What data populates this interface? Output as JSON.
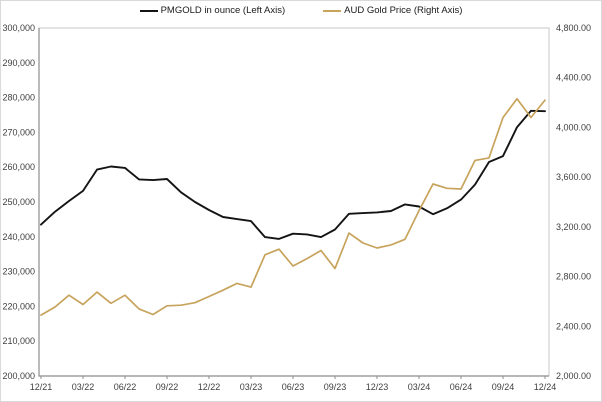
{
  "chart_data": {
    "type": "line",
    "title": "",
    "legend_position": "top",
    "grid": false,
    "months": [
      "12/21",
      "01/22",
      "02/22",
      "03/22",
      "04/22",
      "05/22",
      "06/22",
      "07/22",
      "08/22",
      "09/22",
      "10/22",
      "11/22",
      "12/22",
      "01/23",
      "02/23",
      "03/23",
      "04/23",
      "05/23",
      "06/23",
      "07/23",
      "08/23",
      "09/23",
      "10/23",
      "11/23",
      "12/23",
      "01/24",
      "02/24",
      "03/24",
      "04/24",
      "05/24",
      "06/24",
      "07/24",
      "08/24",
      "09/24",
      "10/24",
      "11/24",
      "12/24"
    ],
    "x_tick_labels": [
      "12/21",
      "03/22",
      "06/22",
      "09/22",
      "12/22",
      "03/23",
      "06/23",
      "09/23",
      "12/23",
      "03/24",
      "06/24",
      "09/24",
      "12/24"
    ],
    "left_axis": {
      "min": 200000,
      "max": 300000,
      "step": 10000,
      "tick_labels": [
        "200,000",
        "210,000",
        "220,000",
        "230,000",
        "240,000",
        "250,000",
        "260,000",
        "270,000",
        "280,000",
        "290,000",
        "300,000"
      ]
    },
    "right_axis": {
      "min": 2000,
      "max": 4800,
      "step": 400,
      "tick_labels": [
        "2,000.00",
        "2,400.00",
        "2,800.00",
        "3,200.00",
        "3,600.00",
        "4,000.00",
        "4,400.00",
        "4,800.00"
      ]
    },
    "series": [
      {
        "name": "PMGOLD in ounce (Left Axis)",
        "axis": "left",
        "color": "#141414",
        "values": [
          243500,
          247200,
          250300,
          253200,
          259300,
          260200,
          259800,
          256500,
          256300,
          256600,
          252800,
          250000,
          247700,
          245700,
          245100,
          244500,
          239900,
          239400,
          240900,
          240700,
          239900,
          242100,
          246600,
          246800,
          247000,
          247400,
          249300,
          248700,
          246500,
          248200,
          250700,
          255000,
          261500,
          263200,
          271500,
          276200,
          276100
        ]
      },
      {
        "name": "AUD Gold Price (Right Axis)",
        "axis": "right",
        "color": "#C7A35C",
        "values": [
          2490,
          2555,
          2650,
          2575,
          2675,
          2585,
          2650,
          2540,
          2495,
          2565,
          2570,
          2590,
          2640,
          2690,
          2745,
          2715,
          2975,
          3020,
          2885,
          2945,
          3010,
          2865,
          3150,
          3070,
          3030,
          3055,
          3100,
          3330,
          3545,
          3510,
          3505,
          3735,
          3755,
          4080,
          4230,
          4080,
          4220
        ]
      }
    ],
    "axis_colors": {
      "frame": "#c9c9c9",
      "axis_line": "#8c8c8c",
      "tick": "#8c8c8c",
      "label": "#404040"
    }
  }
}
